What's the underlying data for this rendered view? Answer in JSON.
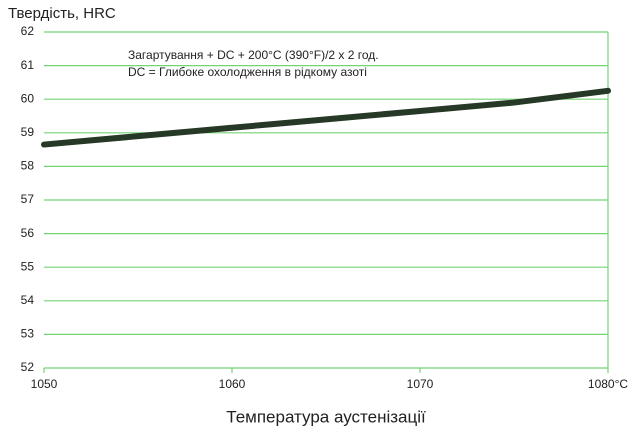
{
  "chart_data": {
    "type": "line",
    "y_label": "Твердість, HRC",
    "x_label": "Температура аустенізації",
    "annotations": [
      "Загартування + DC + 200°C (390°F)/2 x 2 год.",
      "DC = Глибоке охолодження в рідкому азоті"
    ],
    "x": [
      1050,
      1055,
      1060,
      1065,
      1070,
      1075,
      1080
    ],
    "values": [
      58.65,
      58.9,
      59.15,
      59.4,
      59.65,
      59.9,
      60.25
    ],
    "color": "#263826",
    "xlim": [
      1050,
      1080
    ],
    "xticks": [
      1050,
      1060,
      1070,
      {
        "value": 1080,
        "label": "1080°C"
      }
    ],
    "ylim": [
      52,
      62
    ],
    "yticks": [
      52,
      53,
      54,
      55,
      56,
      57,
      58,
      59,
      60,
      61,
      62
    ],
    "grid": true,
    "grid_color": "#74d474"
  }
}
